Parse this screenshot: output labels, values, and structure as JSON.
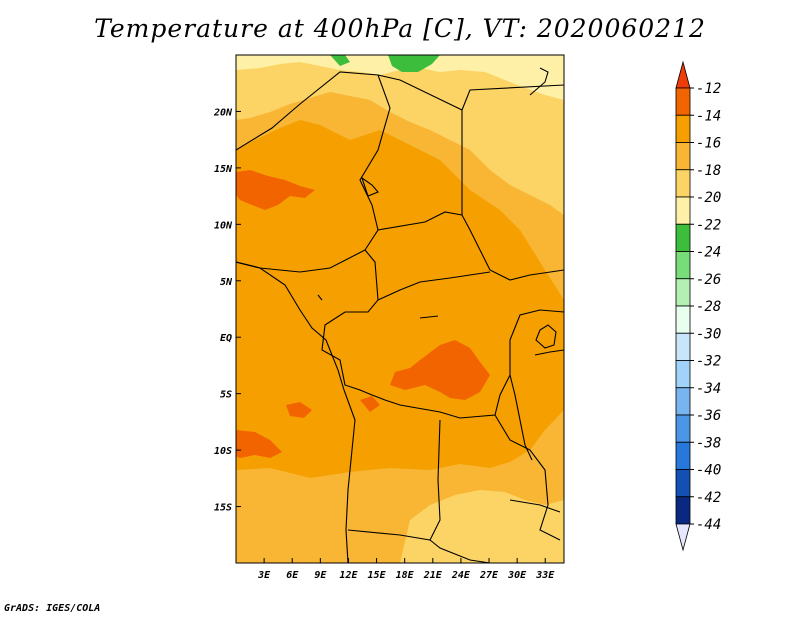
{
  "title": "Temperature at 400hPa [C], VT: 2020060212",
  "credit": "GrADS: IGES/COLA",
  "map": {
    "lon_range": [
      0,
      35
    ],
    "lat_range": [
      -20,
      25
    ],
    "lon_ticks": [
      {
        "value": 3,
        "label": "3E"
      },
      {
        "value": 6,
        "label": "6E"
      },
      {
        "value": 9,
        "label": "9E"
      },
      {
        "value": 12,
        "label": "12E"
      },
      {
        "value": 15,
        "label": "15E"
      },
      {
        "value": 18,
        "label": "18E"
      },
      {
        "value": 21,
        "label": "21E"
      },
      {
        "value": 24,
        "label": "24E"
      },
      {
        "value": 27,
        "label": "27E"
      },
      {
        "value": 30,
        "label": "30E"
      },
      {
        "value": 33,
        "label": "33E"
      }
    ],
    "lat_ticks": [
      {
        "value": 20,
        "label": "20N"
      },
      {
        "value": 15,
        "label": "15N"
      },
      {
        "value": 10,
        "label": "10N"
      },
      {
        "value": 5,
        "label": "5N"
      },
      {
        "value": 0,
        "label": "EQ"
      },
      {
        "value": -5,
        "label": "5S"
      },
      {
        "value": -10,
        "label": "10S"
      },
      {
        "value": -15,
        "label": "15S"
      }
    ],
    "colors": {
      "above_-14": "#f26400",
      "-16_-14": "#f5a000",
      "-18_-16": "#f8b634",
      "-20_-18": "#fcd466",
      "-22_-20": "#fff0a8",
      "-24_-22": "#3cbe3c"
    }
  },
  "colorbar": {
    "levels": [
      "-12",
      "-14",
      "-16",
      "-18",
      "-20",
      "-22",
      "-24",
      "-26",
      "-28",
      "-30",
      "-32",
      "-34",
      "-36",
      "-38",
      "-40",
      "-42",
      "-44"
    ],
    "colors": [
      "#f03c0a",
      "#f26400",
      "#f5a000",
      "#f8b634",
      "#fcd466",
      "#fff0a8",
      "#3cbe3c",
      "#78dc78",
      "#b4f0b4",
      "#e8fff0",
      "#c8e6fa",
      "#a0d2fa",
      "#78b4f0",
      "#4c96e6",
      "#2878dc",
      "#1450b4",
      "#0a2882",
      "#e6e6ff"
    ]
  }
}
